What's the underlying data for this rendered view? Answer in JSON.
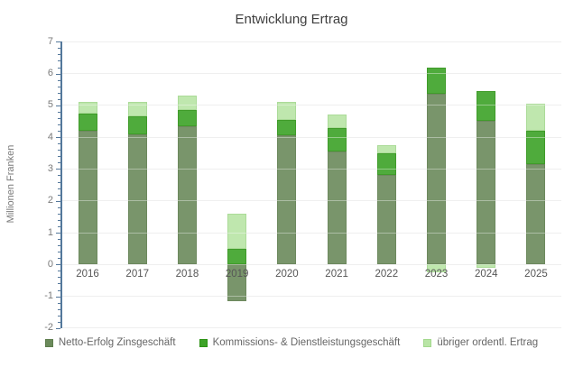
{
  "chart_data": {
    "type": "bar",
    "stacked": true,
    "title": "Entwicklung Ertrag",
    "xlabel": "",
    "ylabel": "Millionen Franken",
    "ylim": [
      -2,
      7
    ],
    "yticks": [
      7,
      6,
      5,
      4,
      3,
      2,
      1,
      0,
      -1,
      -2
    ],
    "grid": true,
    "legend_position": "bottom",
    "categories": [
      "2016",
      "2017",
      "2018",
      "2019",
      "2020",
      "2021",
      "2022",
      "2023",
      "2024",
      "2025"
    ],
    "series": [
      {
        "name": "Netto-Erfolg Zinsgeschäft",
        "color": "#6b8a5b",
        "border": "#5e7d4d",
        "values": [
          4.2,
          4.1,
          4.35,
          -1.15,
          4.05,
          3.55,
          2.8,
          5.35,
          4.5,
          3.15
        ]
      },
      {
        "name": "Kommissions- & Dienstleistungsgeschäft",
        "color": "#3da328",
        "border": "#2c9214",
        "values": [
          0.55,
          0.55,
          0.5,
          0.5,
          0.5,
          0.75,
          0.7,
          0.85,
          0.95,
          1.05
        ]
      },
      {
        "name": "übriger ordentl. Ertrag",
        "color": "#b9e5a6",
        "border": "#a3d88d",
        "values": [
          0.35,
          0.45,
          0.45,
          1.1,
          0.55,
          0.4,
          0.25,
          -0.25,
          -0.1,
          0.85
        ]
      }
    ],
    "axis_color": "#54789b",
    "gridline_color": "#e4e4e4",
    "background": "#ffffff"
  }
}
